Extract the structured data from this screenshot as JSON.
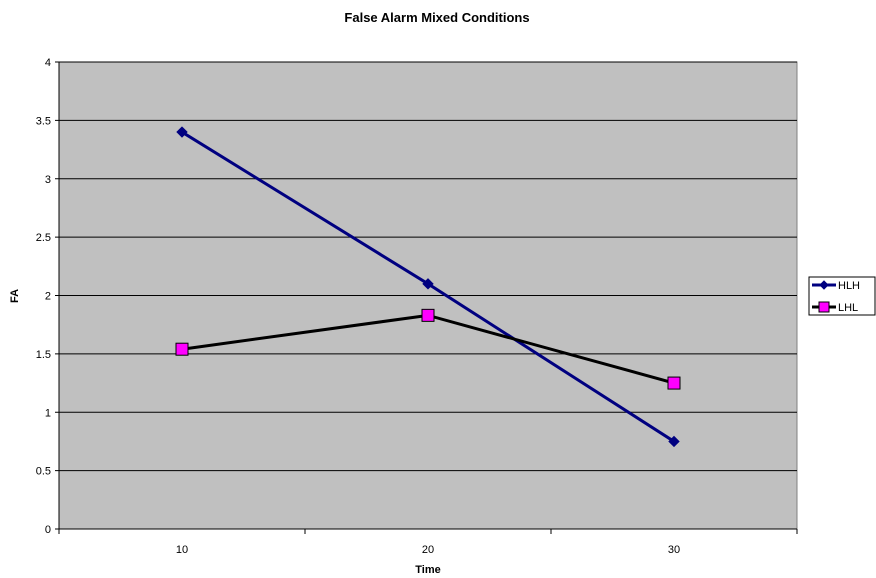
{
  "chart_data": {
    "type": "line",
    "title": "False Alarm Mixed Conditions",
    "xlabel": "Time",
    "ylabel": "FA",
    "categories": [
      "10",
      "20",
      "30"
    ],
    "ylim": [
      0,
      4
    ],
    "yticks": [
      "0",
      "0.5",
      "1",
      "1.5",
      "2",
      "2.5",
      "3",
      "3.5",
      "4"
    ],
    "grid": true,
    "legend_position": "right",
    "plot_background": "#c0c0c0",
    "series": [
      {
        "name": "HLH",
        "values": [
          3.4,
          2.1,
          0.75
        ],
        "color": "#000080",
        "marker": "diamond"
      },
      {
        "name": "LHL",
        "values": [
          1.54,
          1.83,
          1.25
        ],
        "color": "#000000",
        "marker": "square",
        "marker_fill": "#ff00ff"
      }
    ]
  }
}
